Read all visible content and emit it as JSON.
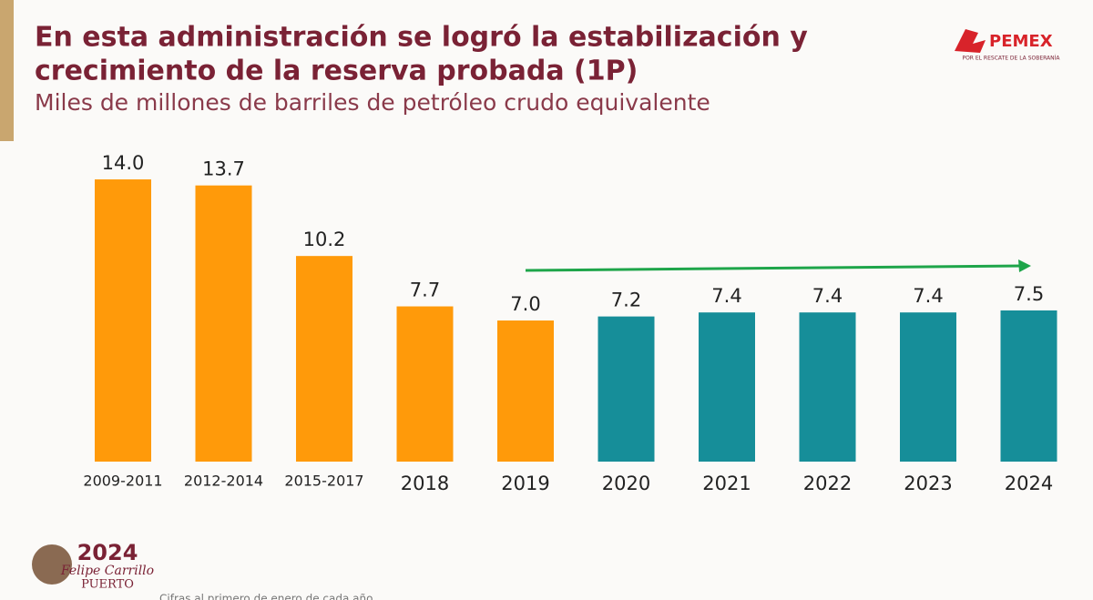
{
  "chart_data": {
    "type": "bar",
    "title": [
      "En esta administración se logró la estabilización y",
      "crecimiento de la reserva probada (1P)"
    ],
    "subtitle": "Miles de millones de barriles de petróleo crudo equivalente",
    "categories": [
      "2009-2011",
      "2012-2014",
      "2015-2017",
      "2018",
      "2019",
      "2020",
      "2021",
      "2022",
      "2023",
      "2024"
    ],
    "values": [
      14.0,
      13.7,
      10.2,
      7.7,
      7.0,
      7.2,
      7.4,
      7.4,
      7.4,
      7.5
    ],
    "value_labels": [
      "14.0",
      "13.7",
      "10.2",
      "7.7",
      "7.0",
      "7.2",
      "7.4",
      "7.4",
      "7.4",
      "7.5"
    ],
    "colors": [
      "#ff9a0a",
      "#ff9a0a",
      "#ff9a0a",
      "#ff9a0a",
      "#ff9a0a",
      "#168e99",
      "#168e99",
      "#168e99",
      "#168e99",
      "#168e99"
    ],
    "note": "Cifras al primero de enero de cada año"
  },
  "logo": {
    "name": "PEMEX",
    "slogan": "POR EL RESCATE DE LA SOBERANÍA"
  },
  "badge": {
    "year": "2024",
    "name": "Felipe Carrillo",
    "place": "PUERTO"
  }
}
